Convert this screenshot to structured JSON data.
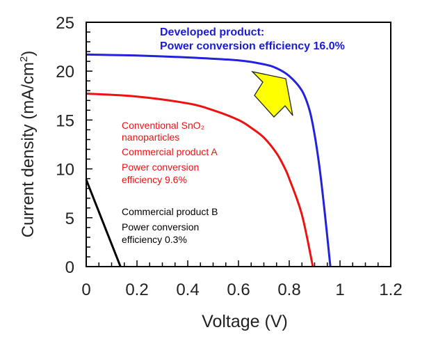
{
  "chart_data": {
    "type": "line",
    "xlabel": "Voltage (V)",
    "ylabel": "Current density (mA/cm",
    "ylabel_sup": "2",
    "ylabel_close": ")",
    "xlim": [
      0,
      1.2
    ],
    "ylim": [
      0,
      25
    ],
    "x_ticks": [
      "0",
      "0.2",
      "0.4",
      "0.6",
      "0.8",
      "1",
      "1.2"
    ],
    "y_ticks": [
      "0",
      "5",
      "10",
      "15",
      "20",
      "25"
    ],
    "grid": false,
    "series": [
      {
        "color": "#2222dd",
        "x": [
          0,
          0.2,
          0.4,
          0.6,
          0.7,
          0.75,
          0.8,
          0.85,
          0.88,
          0.9,
          0.92,
          0.94,
          0.962
        ],
        "y": [
          21.7,
          21.6,
          21.4,
          21.1,
          20.7,
          20.3,
          19.5,
          18.0,
          16.0,
          13.5,
          10.0,
          5.5,
          0
        ]
      },
      {
        "color": "#ee1111",
        "x": [
          0,
          0.2,
          0.4,
          0.5,
          0.6,
          0.65,
          0.7,
          0.75,
          0.78,
          0.8,
          0.85,
          0.893
        ],
        "y": [
          17.7,
          17.4,
          16.7,
          16.0,
          15.0,
          14.2,
          13.2,
          11.6,
          10.2,
          9.0,
          5.3,
          0
        ]
      },
      {
        "color": "#000000",
        "x": [
          0,
          0.135
        ],
        "y": [
          8.9,
          0
        ]
      }
    ],
    "annotations": {
      "developed": [
        "Developed product:",
        "Power conversion efficiency 16.0%"
      ],
      "conventional": [
        "Conventional SnO₂",
        "nanoparticles",
        "Commercial product A",
        "Power conversion",
        "efficiency 9.6%"
      ],
      "commercial_b": [
        "Commercial product B",
        "Power conversion",
        "efficiency 0.3%"
      ]
    },
    "arrow_color": "#ffff00"
  }
}
